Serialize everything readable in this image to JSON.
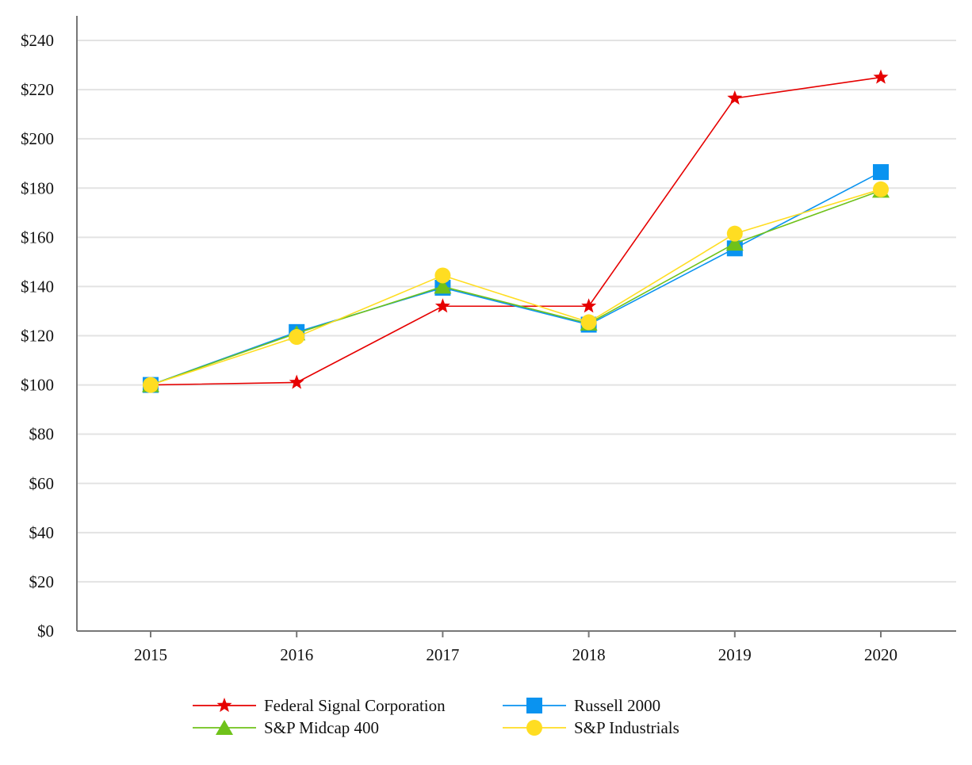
{
  "chart_data": {
    "type": "line",
    "title": "",
    "xlabel": "",
    "ylabel": "",
    "categories": [
      "2015",
      "2016",
      "2017",
      "2018",
      "2019",
      "2020"
    ],
    "ylim": [
      0,
      250
    ],
    "yticks": [
      0,
      20,
      40,
      60,
      80,
      100,
      120,
      140,
      160,
      180,
      200,
      220,
      240
    ],
    "ytick_labels": [
      "$0",
      "$20",
      "$40",
      "$60",
      "$80",
      "$100",
      "$120",
      "$140",
      "$160",
      "$180",
      "$200",
      "$220",
      "$240"
    ],
    "grid": true,
    "legend_position": "bottom",
    "series": [
      {
        "name": "Federal Signal Corporation",
        "color": "#e60000",
        "marker": "star",
        "values": [
          100,
          101,
          132,
          132,
          216.5,
          225
        ]
      },
      {
        "name": "Russell 2000",
        "color": "#0a93f0",
        "marker": "square",
        "values": [
          100,
          121.5,
          139.5,
          124.5,
          155.5,
          186.5
        ]
      },
      {
        "name": "S&P Midcap 400",
        "color": "#6fc21a",
        "marker": "triangle",
        "values": [
          100,
          121,
          140,
          125,
          157.5,
          179
        ]
      },
      {
        "name": "S&P Industrials",
        "color": "#ffdd22",
        "marker": "circle",
        "values": [
          100,
          119.5,
          144.5,
          125.5,
          161.5,
          179.5
        ]
      }
    ]
  }
}
